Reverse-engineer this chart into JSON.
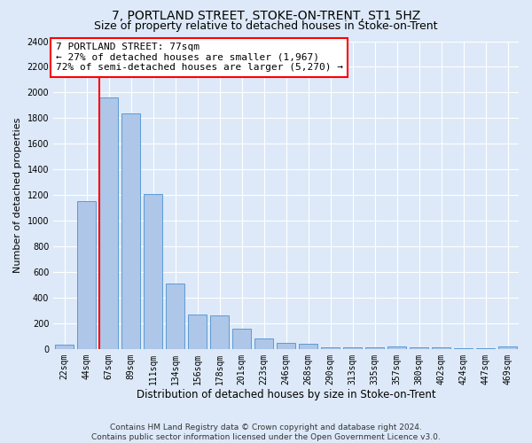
{
  "title": "7, PORTLAND STREET, STOKE-ON-TRENT, ST1 5HZ",
  "subtitle": "Size of property relative to detached houses in Stoke-on-Trent",
  "xlabel": "Distribution of detached houses by size in Stoke-on-Trent",
  "ylabel": "Number of detached properties",
  "categories": [
    "22sqm",
    "44sqm",
    "67sqm",
    "89sqm",
    "111sqm",
    "134sqm",
    "156sqm",
    "178sqm",
    "201sqm",
    "223sqm",
    "246sqm",
    "268sqm",
    "290sqm",
    "313sqm",
    "335sqm",
    "357sqm",
    "380sqm",
    "402sqm",
    "424sqm",
    "447sqm",
    "469sqm"
  ],
  "values": [
    30,
    1150,
    1960,
    1840,
    1210,
    510,
    265,
    260,
    155,
    80,
    45,
    40,
    15,
    15,
    15,
    20,
    10,
    10,
    5,
    5,
    20
  ],
  "bar_color": "#aec6e8",
  "bar_edgecolor": "#5b9bd5",
  "vline_color": "red",
  "vline_index": 2,
  "ylim": [
    0,
    2400
  ],
  "yticks": [
    0,
    200,
    400,
    600,
    800,
    1000,
    1200,
    1400,
    1600,
    1800,
    2000,
    2200,
    2400
  ],
  "annotation_line1": "7 PORTLAND STREET: 77sqm",
  "annotation_line2": "← 27% of detached houses are smaller (1,967)",
  "annotation_line3": "72% of semi-detached houses are larger (5,270) →",
  "annotation_box_color": "white",
  "annotation_box_edgecolor": "red",
  "footer_line1": "Contains HM Land Registry data © Crown copyright and database right 2024.",
  "footer_line2": "Contains public sector information licensed under the Open Government Licence v3.0.",
  "background_color": "#dde9f8",
  "plot_bg_color": "#dde9f8",
  "grid_color": "white",
  "title_fontsize": 10,
  "subtitle_fontsize": 9,
  "xlabel_fontsize": 8.5,
  "ylabel_fontsize": 8,
  "tick_fontsize": 7,
  "annotation_fontsize": 8,
  "footer_fontsize": 6.5
}
